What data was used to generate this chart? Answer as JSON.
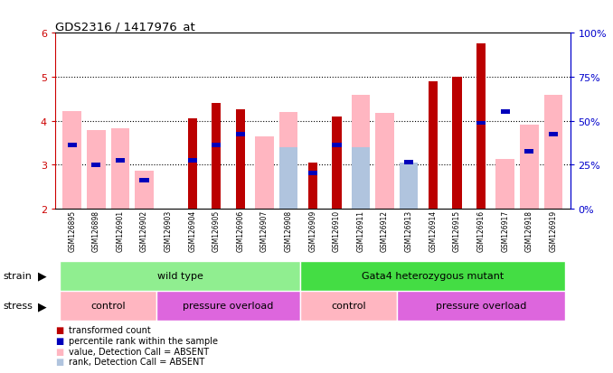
{
  "title": "GDS2316 / 1417976_at",
  "samples": [
    "GSM126895",
    "GSM126898",
    "GSM126901",
    "GSM126902",
    "GSM126903",
    "GSM126904",
    "GSM126905",
    "GSM126906",
    "GSM126907",
    "GSM126908",
    "GSM126909",
    "GSM126910",
    "GSM126911",
    "GSM126912",
    "GSM126913",
    "GSM126914",
    "GSM126915",
    "GSM126916",
    "GSM126917",
    "GSM126918",
    "GSM126919"
  ],
  "transformed_count": [
    null,
    null,
    null,
    null,
    null,
    4.05,
    4.4,
    4.25,
    null,
    null,
    3.05,
    4.1,
    null,
    null,
    null,
    4.9,
    5.0,
    5.75,
    null,
    null,
    null
  ],
  "percentile_rank": [
    3.45,
    3.0,
    3.1,
    2.65,
    null,
    3.1,
    3.45,
    3.7,
    null,
    null,
    2.8,
    3.45,
    null,
    null,
    3.05,
    null,
    null,
    3.95,
    4.2,
    3.3,
    3.7
  ],
  "value_absent": [
    4.22,
    3.78,
    3.82,
    2.87,
    null,
    null,
    null,
    null,
    3.65,
    4.2,
    null,
    null,
    4.58,
    4.17,
    3.05,
    null,
    null,
    null,
    3.12,
    3.9,
    4.58
  ],
  "rank_absent": [
    null,
    null,
    null,
    null,
    null,
    null,
    null,
    null,
    null,
    3.4,
    null,
    null,
    3.4,
    null,
    3.05,
    null,
    null,
    null,
    null,
    null,
    null
  ],
  "ylim": [
    2,
    6
  ],
  "yticks": [
    2,
    3,
    4,
    5,
    6
  ],
  "color_dark_red": "#bb0000",
  "color_blue": "#0000bb",
  "color_light_pink": "#ffb6c1",
  "color_light_blue": "#b0c4de",
  "color_axis_red": "#cc0000",
  "color_axis_blue": "#0000cc",
  "color_gray_bg": "#c8c8c8",
  "color_green_light": "#90ee90",
  "color_green_bright": "#44dd44",
  "color_pink_control": "#ffb6c1",
  "color_purple_overload": "#dd66dd",
  "bar_width": 0.55
}
